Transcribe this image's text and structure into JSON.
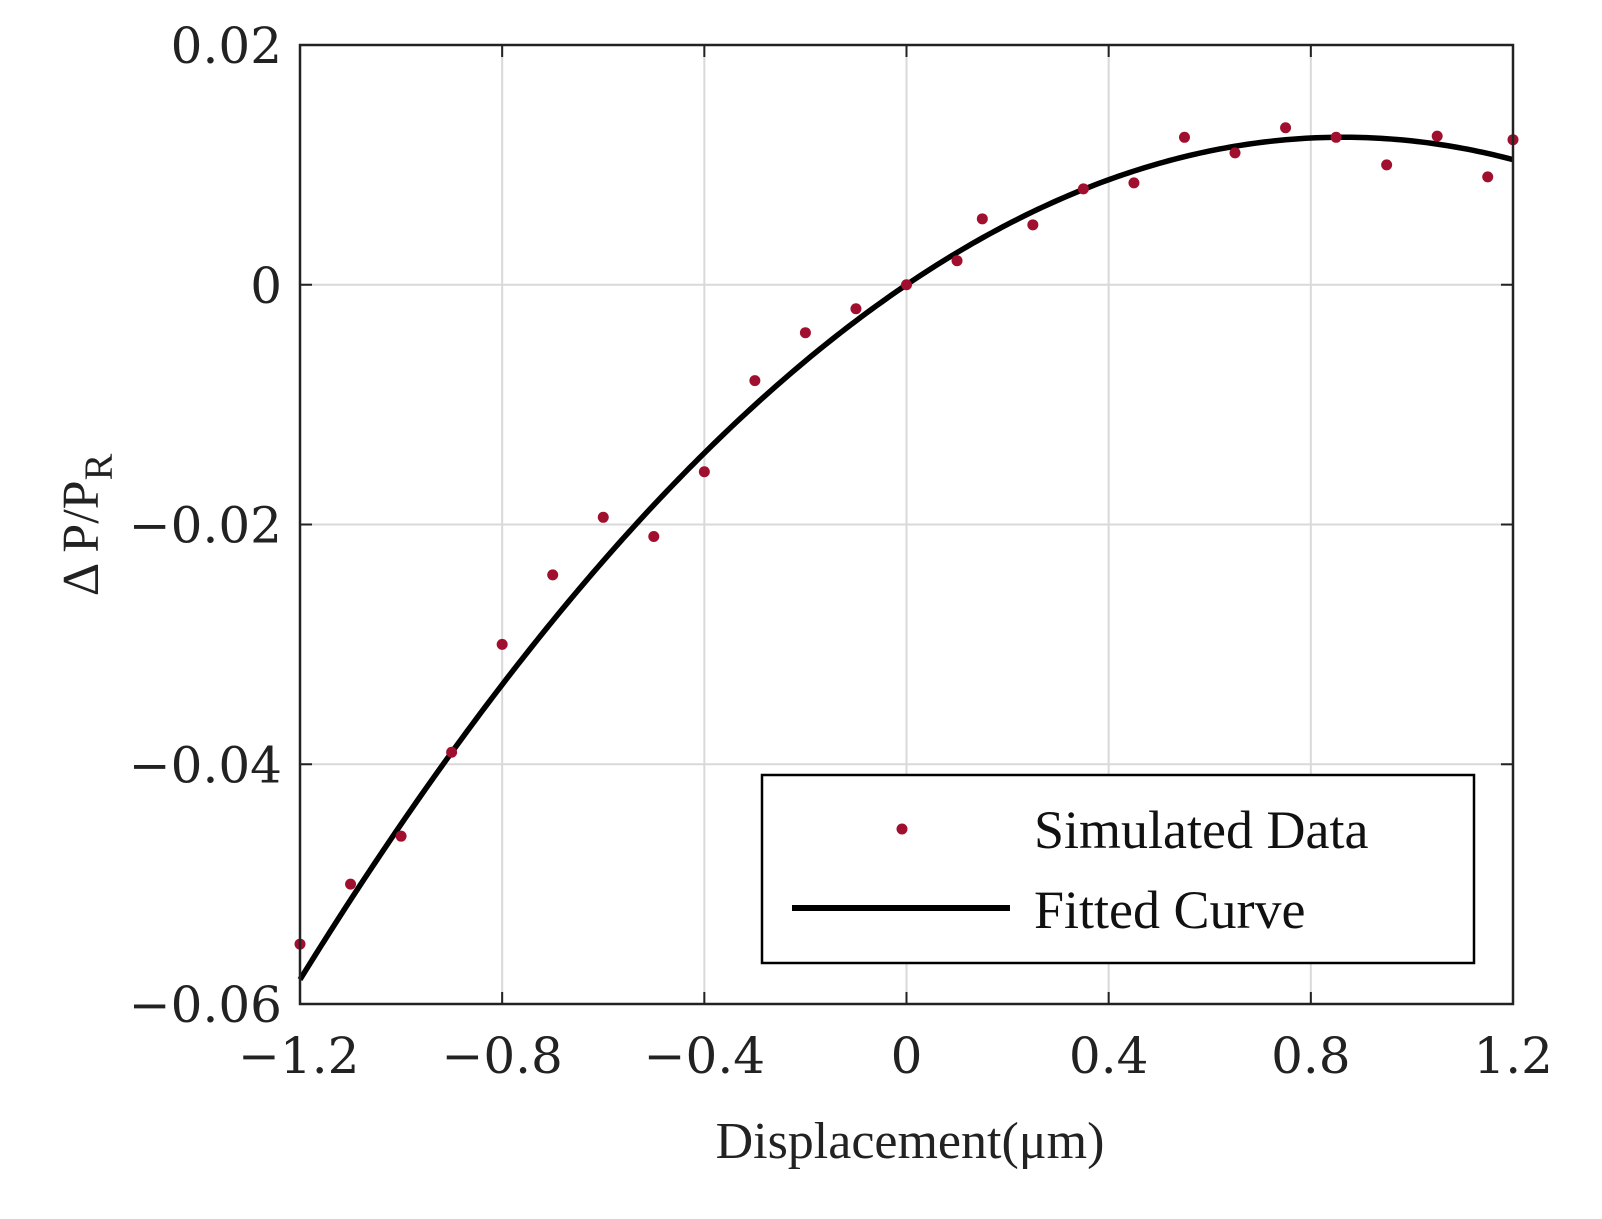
{
  "chart_data": {
    "type": "scatter",
    "title": "",
    "xlabel": "Displacement(μm)",
    "ylabel": {
      "prefix": "Δ P/P",
      "subscript": "R"
    },
    "xlim": [
      -1.2,
      1.2
    ],
    "ylim": [
      -0.06,
      0.02
    ],
    "grid": true,
    "legend_position": "bottom-right",
    "x_ticks": [
      {
        "value": -1.2,
        "label": "−1.2"
      },
      {
        "value": -0.8,
        "label": "−0.8"
      },
      {
        "value": -0.4,
        "label": "−0.4"
      },
      {
        "value": 0,
        "label": "0"
      },
      {
        "value": 0.4,
        "label": "0.4"
      },
      {
        "value": 0.8,
        "label": "0.8"
      },
      {
        "value": 1.2,
        "label": "1.2"
      }
    ],
    "y_ticks": [
      {
        "value": 0.02,
        "label": "0.02"
      },
      {
        "value": 0,
        "label": "0"
      },
      {
        "value": -0.02,
        "label": "−0.02"
      },
      {
        "value": -0.04,
        "label": "−0.04"
      },
      {
        "value": -0.06,
        "label": "−0.06"
      }
    ],
    "series": [
      {
        "name": "Simulated Data",
        "kind": "scatter",
        "color": "#a0102e",
        "x": [
          -1.2,
          -1.1,
          -1.0,
          -0.9,
          -0.8,
          -0.7,
          -0.6,
          -0.5,
          -0.4,
          -0.3,
          -0.2,
          -0.1,
          0.0,
          0.1,
          0.15,
          0.25,
          0.35,
          0.45,
          0.55,
          0.65,
          0.75,
          0.85,
          0.95,
          1.05,
          1.15,
          1.2
        ],
        "y": [
          -0.055,
          -0.05,
          -0.046,
          -0.039,
          -0.03,
          -0.0242,
          -0.0194,
          -0.021,
          -0.0156,
          -0.008,
          -0.004,
          -0.002,
          0.0,
          0.002,
          0.0055,
          0.005,
          0.008,
          0.0085,
          0.0123,
          0.011,
          0.0131,
          0.0123,
          0.01,
          0.0124,
          0.009,
          0.0121
        ]
      },
      {
        "name": "Fitted Curve",
        "kind": "line",
        "color": "#000000",
        "equation": "y = a*x^2 + b*x",
        "coefficients": {
          "a": -0.0165,
          "b": 0.0285
        }
      }
    ]
  }
}
